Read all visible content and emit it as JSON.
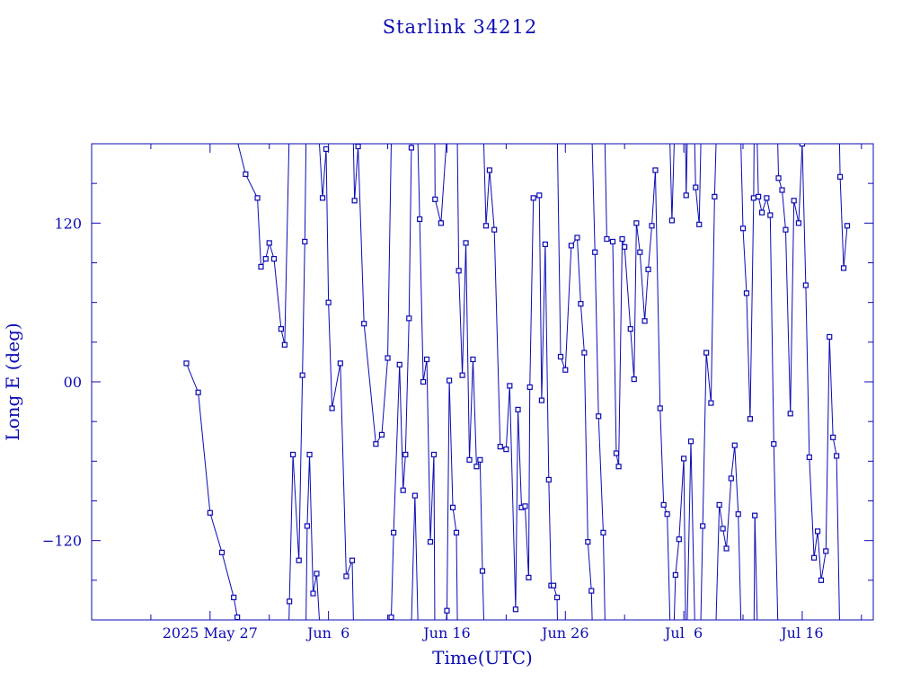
{
  "chart_data": {
    "type": "line",
    "title": "Starlink 34212",
    "xlabel": "Time(UTC)",
    "ylabel": "Long E (deg)",
    "x_ticks": [
      {
        "label": "2025 May 27",
        "day": 0
      },
      {
        "label": "Jun  6",
        "day": 10
      },
      {
        "label": "Jun 16",
        "day": 20
      },
      {
        "label": "Jun 26",
        "day": 30
      },
      {
        "label": "Jul  6",
        "day": 40
      },
      {
        "label": "Jul 16",
        "day": 50
      }
    ],
    "y_ticks": [
      {
        "label": "120",
        "value": 120
      },
      {
        "label": "00",
        "value": 0
      },
      {
        "label": "−120",
        "value": -120
      }
    ],
    "xlim_days_from_May_27": [
      -10,
      56
    ],
    "ylim": [
      -180,
      180
    ],
    "grid": false,
    "color": "#0b0bb4",
    "series": [
      {
        "points": [
          [
            -2.0,
            14
          ],
          [
            -1.0,
            -8
          ],
          [
            0.0,
            -99
          ],
          [
            1.0,
            -129
          ],
          [
            2.0,
            -163
          ],
          [
            2.3,
            -178
          ],
          [
            3.0,
            157
          ],
          [
            4.0,
            139
          ],
          [
            4.3,
            87
          ],
          [
            4.7,
            93
          ],
          [
            5.0,
            105
          ],
          [
            5.4,
            93
          ],
          [
            6.0,
            40
          ],
          [
            6.3,
            28
          ],
          [
            6.7,
            -166
          ],
          [
            7.0,
            -55
          ],
          [
            7.5,
            -135
          ],
          [
            7.8,
            5
          ],
          [
            8.0,
            106
          ],
          [
            8.2,
            -109
          ],
          [
            8.4,
            -55
          ],
          [
            8.7,
            -160
          ],
          [
            9.0,
            -145
          ],
          [
            9.5,
            139
          ],
          [
            9.8,
            176
          ],
          [
            10.0,
            60
          ],
          [
            10.3,
            -20
          ],
          [
            11.0,
            14
          ],
          [
            11.5,
            -147
          ],
          [
            12.0,
            -135
          ],
          [
            12.2,
            137
          ],
          [
            12.5,
            178
          ],
          [
            13.0,
            44
          ],
          [
            14.0,
            -47
          ],
          [
            14.5,
            -40
          ],
          [
            15.0,
            18
          ],
          [
            15.3,
            -178
          ],
          [
            15.5,
            -114
          ],
          [
            16.0,
            13
          ],
          [
            16.3,
            -82
          ],
          [
            16.5,
            -55
          ],
          [
            16.8,
            48
          ],
          [
            17.0,
            177
          ],
          [
            17.3,
            -86
          ],
          [
            17.7,
            123
          ],
          [
            18.0,
            0
          ],
          [
            18.3,
            17
          ],
          [
            18.6,
            -121
          ],
          [
            18.9,
            -55
          ],
          [
            19.0,
            138
          ],
          [
            19.5,
            120
          ],
          [
            20.0,
            -173
          ],
          [
            20.2,
            1
          ],
          [
            20.5,
            -95
          ],
          [
            20.8,
            -114
          ],
          [
            21.0,
            84
          ],
          [
            21.3,
            5
          ],
          [
            21.6,
            105
          ],
          [
            21.9,
            -59
          ],
          [
            22.2,
            17
          ],
          [
            22.5,
            -64
          ],
          [
            22.8,
            -59
          ],
          [
            23.0,
            -143
          ],
          [
            23.3,
            118
          ],
          [
            23.6,
            160
          ],
          [
            24.0,
            115
          ],
          [
            24.5,
            -49
          ],
          [
            25.0,
            -51
          ],
          [
            25.3,
            -3
          ],
          [
            25.8,
            -172
          ],
          [
            26.0,
            -21
          ],
          [
            26.3,
            -95
          ],
          [
            26.6,
            -94
          ],
          [
            26.9,
            -148
          ],
          [
            27.0,
            -4
          ],
          [
            27.3,
            139
          ],
          [
            27.8,
            141
          ],
          [
            28.0,
            -14
          ],
          [
            28.3,
            104
          ],
          [
            28.6,
            -74
          ],
          [
            28.8,
            -154
          ],
          [
            29.0,
            -154
          ],
          [
            29.3,
            -163
          ],
          [
            29.6,
            19
          ],
          [
            30.0,
            9
          ],
          [
            30.5,
            103
          ],
          [
            31.0,
            109
          ],
          [
            31.3,
            59
          ],
          [
            31.6,
            22
          ],
          [
            31.9,
            -121
          ],
          [
            32.2,
            -158
          ],
          [
            32.5,
            98
          ],
          [
            32.8,
            -26
          ],
          [
            33.2,
            -114
          ],
          [
            33.5,
            108
          ],
          [
            34.0,
            106
          ],
          [
            34.3,
            -54
          ],
          [
            34.5,
            -64
          ],
          [
            34.8,
            108
          ],
          [
            35.0,
            102
          ],
          [
            35.5,
            40
          ],
          [
            35.8,
            2
          ],
          [
            36.0,
            120
          ],
          [
            36.3,
            98
          ],
          [
            36.7,
            46
          ],
          [
            37.0,
            85
          ],
          [
            37.3,
            118
          ],
          [
            37.6,
            160
          ],
          [
            38.0,
            -20
          ],
          [
            38.3,
            -93
          ],
          [
            38.6,
            -100
          ],
          [
            39.0,
            122
          ],
          [
            39.3,
            -146
          ],
          [
            39.6,
            -119
          ],
          [
            40.0,
            -58
          ],
          [
            40.2,
            141
          ],
          [
            40.6,
            -45
          ],
          [
            41.0,
            147
          ],
          [
            41.3,
            119
          ],
          [
            41.6,
            -109
          ],
          [
            41.9,
            22
          ],
          [
            42.3,
            -16
          ],
          [
            42.6,
            140
          ],
          [
            43.0,
            -93
          ],
          [
            43.3,
            -111
          ],
          [
            43.6,
            -126
          ],
          [
            44.0,
            -73
          ],
          [
            44.3,
            -48
          ],
          [
            44.6,
            -100
          ],
          [
            45.0,
            116
          ],
          [
            45.3,
            67
          ],
          [
            45.6,
            -28
          ],
          [
            45.9,
            139
          ],
          [
            46.0,
            -101
          ],
          [
            46.3,
            140
          ],
          [
            46.6,
            128
          ],
          [
            47.0,
            139
          ],
          [
            47.3,
            126
          ],
          [
            47.6,
            -47
          ],
          [
            48.0,
            154
          ],
          [
            48.3,
            145
          ],
          [
            48.6,
            115
          ],
          [
            49.0,
            -24
          ],
          [
            49.3,
            137
          ],
          [
            49.7,
            120
          ],
          [
            50.0,
            180
          ],
          [
            50.3,
            73
          ],
          [
            50.6,
            -57
          ],
          [
            51.0,
            -133
          ],
          [
            51.3,
            -113
          ],
          [
            51.6,
            -150
          ],
          [
            52.0,
            -128
          ],
          [
            52.3,
            34
          ],
          [
            52.6,
            -42
          ],
          [
            52.9,
            -56
          ],
          [
            53.2,
            155
          ],
          [
            53.5,
            86
          ],
          [
            53.8,
            118
          ]
        ]
      }
    ]
  }
}
